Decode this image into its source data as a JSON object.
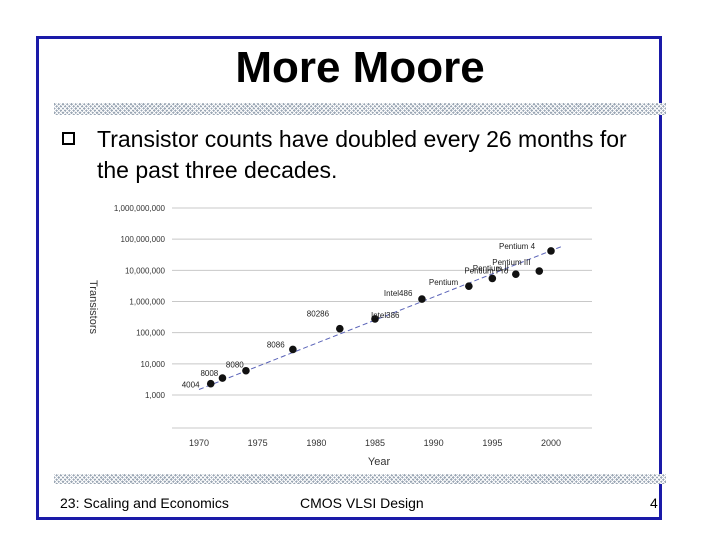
{
  "slide": {
    "title": "More Moore",
    "bullet": "Transistor counts have doubled every 26 months for the past three decades."
  },
  "footer": {
    "left": "23: Scaling and Economics",
    "center": "CMOS VLSI Design",
    "right": "4"
  },
  "colors": {
    "frame": "#1a1aa8",
    "trend": "#5a63b8"
  },
  "chart_data": {
    "type": "scatter",
    "xlabel": "Year",
    "ylabel": "Transistors",
    "xlim": [
      1967,
      2002
    ],
    "ylim": [
      100,
      1000000000
    ],
    "log_y": true,
    "grid": true,
    "x_ticks": [
      "1970",
      "1975",
      "1980",
      "1985",
      "1990",
      "1995",
      "2000"
    ],
    "y_ticks": [
      "1,000,000,000",
      "100,000,000",
      "10,000,000",
      "1,000,000",
      "100,000",
      "10,000",
      "1,000"
    ],
    "y_tick_values": [
      1000000000,
      100000000,
      10000000,
      1000000,
      100000,
      10000,
      1000
    ],
    "points": [
      {
        "label": "4004",
        "x": 1971,
        "y": 2300
      },
      {
        "label": "8008",
        "x": 1972,
        "y": 3500
      },
      {
        "label": "8080",
        "x": 1974,
        "y": 6000
      },
      {
        "label": "8086",
        "x": 1978,
        "y": 29000
      },
      {
        "label": "80286",
        "x": 1982,
        "y": 134000
      },
      {
        "label": "Intel386",
        "x": 1985,
        "y": 275000
      },
      {
        "label": "Intel486",
        "x": 1989,
        "y": 1200000
      },
      {
        "label": "Pentium",
        "x": 1993,
        "y": 3100000
      },
      {
        "label": "Pentium Pro",
        "x": 1995,
        "y": 5500000
      },
      {
        "label": "Pentium II",
        "x": 1997,
        "y": 7500000
      },
      {
        "label": "Pentium III",
        "x": 1999,
        "y": 9500000
      },
      {
        "label": "Pentium 4",
        "x": 2000,
        "y": 42000000
      }
    ],
    "trend": {
      "x": [
        1970,
        2001
      ],
      "y": [
        1500,
        60000000
      ]
    }
  }
}
